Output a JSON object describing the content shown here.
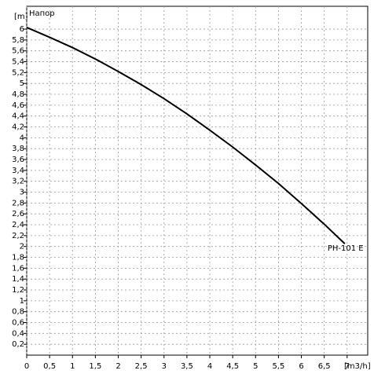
{
  "chart_data": {
    "type": "line",
    "title": "Напор",
    "y_label": "[m]",
    "x_label": "[m3/h]",
    "x": [
      0,
      0.5,
      1,
      1.5,
      2,
      2.5,
      3,
      3.5,
      4,
      4.5,
      5,
      5.5,
      6,
      6.5,
      6.95
    ],
    "series": [
      {
        "name": "PH-101 E",
        "color": "#000000",
        "values": [
          6.03,
          5.85,
          5.66,
          5.45,
          5.22,
          4.98,
          4.72,
          4.44,
          4.14,
          3.83,
          3.5,
          3.16,
          2.79,
          2.41,
          2.05
        ]
      }
    ],
    "xlim": [
      0,
      7.45
    ],
    "ylim": [
      0,
      6.42
    ],
    "xticks": [
      0,
      {
        "value": 0.5,
        "label": "0,5"
      },
      1,
      {
        "value": 1.5,
        "label": "1,5"
      },
      2,
      {
        "value": 2.5,
        "label": "2,5"
      },
      3,
      {
        "value": 3.5,
        "label": "3,5"
      },
      4,
      {
        "value": 4.5,
        "label": "4,5"
      },
      5,
      {
        "value": 5.5,
        "label": "5,5"
      },
      6,
      {
        "value": 6.5,
        "label": "6,5"
      },
      7
    ],
    "yticks": [
      {
        "value": 0.2,
        "label": "0,2"
      },
      {
        "value": 0.4,
        "label": "0,4"
      },
      {
        "value": 0.6,
        "label": "0,6"
      },
      {
        "value": 0.8,
        "label": "0,8"
      },
      1,
      {
        "value": 1.2,
        "label": "1,2"
      },
      {
        "value": 1.4,
        "label": "1,4"
      },
      {
        "value": 1.6,
        "label": "1,6"
      },
      {
        "value": 1.8,
        "label": "1,8"
      },
      2,
      {
        "value": 2.2,
        "label": "2,2"
      },
      {
        "value": 2.4,
        "label": "2,4"
      },
      {
        "value": 2.6,
        "label": "2,6"
      },
      {
        "value": 2.8,
        "label": "2,8"
      },
      3,
      {
        "value": 3.2,
        "label": "3,2"
      },
      {
        "value": 3.4,
        "label": "3,4"
      },
      {
        "value": 3.6,
        "label": "3,6"
      },
      {
        "value": 3.8,
        "label": "3,8"
      },
      4,
      {
        "value": 4.2,
        "label": "4,2"
      },
      {
        "value": 4.4,
        "label": "4,4"
      },
      {
        "value": 4.6,
        "label": "4,6"
      },
      {
        "value": 4.8,
        "label": "4,8"
      },
      5,
      {
        "value": 5.2,
        "label": "5,2"
      },
      {
        "value": 5.4,
        "label": "5,4"
      },
      {
        "value": 5.6,
        "label": "5,6"
      },
      {
        "value": 5.8,
        "label": "5,8"
      },
      6
    ],
    "grid": true
  }
}
